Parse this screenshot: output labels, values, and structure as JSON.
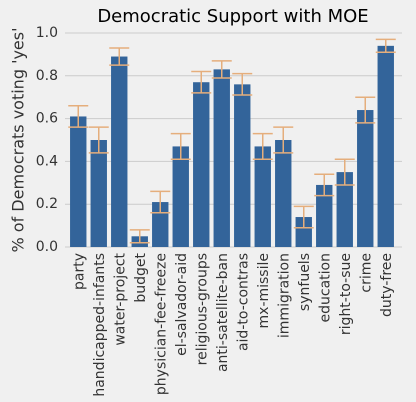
{
  "chart_data": {
    "type": "bar",
    "title": "Democratic Support with MOE",
    "ylabel": "% of Democrats voting 'yes'",
    "categories": [
      "party",
      "handicapped-infants",
      "water-project",
      "budget",
      "physician-fee-freeze",
      "el-salvador-aid",
      "religious-groups",
      "anti-satellite-ban",
      "aid-to-contras",
      "mx-missile",
      "immigration",
      "synfuels",
      "education",
      "right-to-sue",
      "crime",
      "duty-free"
    ],
    "values": [
      0.61,
      0.5,
      0.89,
      0.05,
      0.21,
      0.47,
      0.77,
      0.83,
      0.76,
      0.47,
      0.5,
      0.14,
      0.29,
      0.35,
      0.64,
      0.94
    ],
    "errors": [
      0.05,
      0.06,
      0.04,
      0.03,
      0.05,
      0.06,
      0.05,
      0.04,
      0.05,
      0.06,
      0.06,
      0.05,
      0.05,
      0.06,
      0.06,
      0.03
    ],
    "color": "#33649a",
    "error_color": "#e5ae7c",
    "ylim": [
      0,
      1.0
    ],
    "yticks": [
      {
        "value": 0,
        "label": "0.0"
      },
      {
        "value": 0.2,
        "label": "0.2"
      },
      {
        "value": 0.4,
        "label": "0.4"
      },
      {
        "value": 0.6,
        "label": "0.6"
      },
      {
        "value": 0.8,
        "label": "0.8"
      },
      {
        "value": 1.0,
        "label": "1.0"
      }
    ],
    "grid": true
  }
}
